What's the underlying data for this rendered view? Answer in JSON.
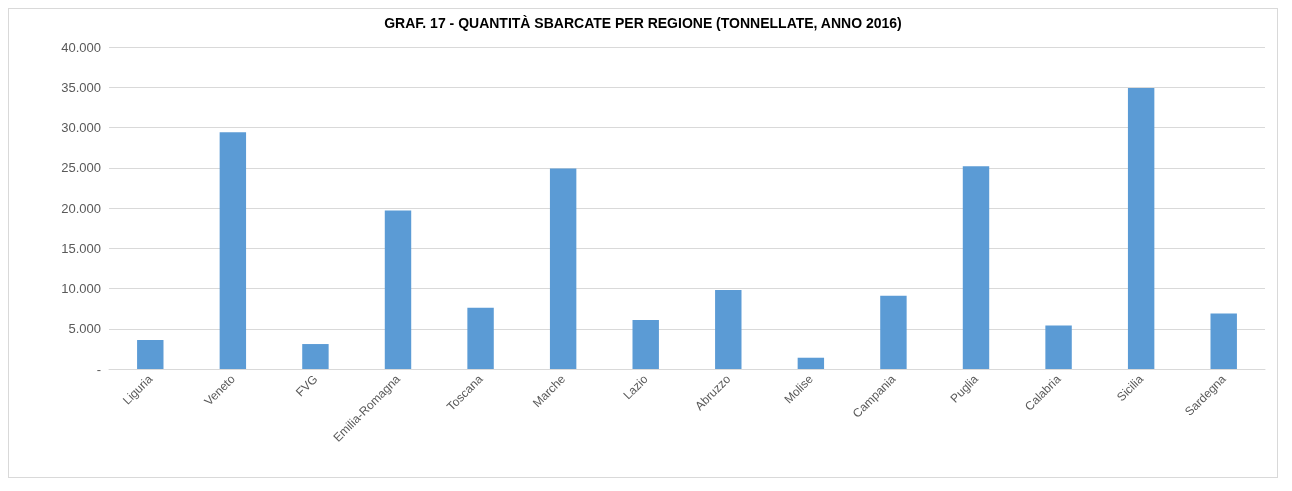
{
  "chart_data": {
    "type": "bar",
    "title": "GRAF. 17 - QUANTITÀ SBARCATE PER REGIONE (TONNELLATE, ANNO 2016)",
    "categories": [
      "Liguria",
      "Veneto",
      "FVG",
      "Emilia-Romagna",
      "Toscana",
      "Marche",
      "Lazio",
      "Abruzzo",
      "Molise",
      "Campania",
      "Puglia",
      "Calabria",
      "Sicilia",
      "Sardegna"
    ],
    "values": [
      3600,
      29400,
      3100,
      19700,
      7600,
      24900,
      6100,
      9800,
      1400,
      9100,
      25200,
      5400,
      34900,
      6900
    ],
    "color": "#5b9bd5",
    "ylim": [
      0,
      40000
    ],
    "yticks": [
      {
        "value": 0,
        "label": "-"
      },
      {
        "value": 5000,
        "label": "5.000"
      },
      {
        "value": 10000,
        "label": "10.000"
      },
      {
        "value": 15000,
        "label": "15.000"
      },
      {
        "value": 20000,
        "label": "20.000"
      },
      {
        "value": 25000,
        "label": "25.000"
      },
      {
        "value": 30000,
        "label": "30.000"
      },
      {
        "value": 35000,
        "label": "35.000"
      },
      {
        "value": 40000,
        "label": "40.000"
      }
    ],
    "grid": "y"
  }
}
